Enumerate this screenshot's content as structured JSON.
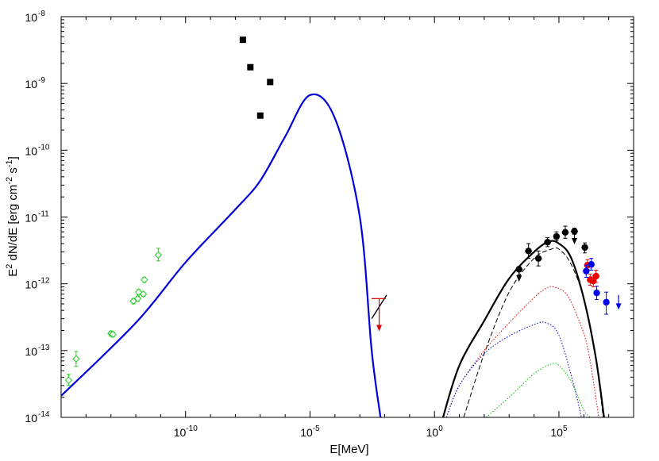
{
  "chart_data": {
    "type": "scatter",
    "xlabel": "E[MeV]",
    "ylabel": {
      "parts": [
        "E",
        "2",
        " dN/dE [erg cm",
        "-2",
        " s",
        "-1",
        "]"
      ]
    },
    "xscale": "log",
    "yscale": "log",
    "xlim": [
      1e-15,
      100000000.0
    ],
    "ylim": [
      1e-14,
      1e-08
    ],
    "x_ticks": [
      {
        "value": 1e-10,
        "base": "10",
        "exp": "-10"
      },
      {
        "value": 1e-05,
        "base": "10",
        "exp": "-5"
      },
      {
        "value": 1,
        "base": "10",
        "exp": "0"
      },
      {
        "value": 100000.0,
        "base": "10",
        "exp": "5"
      }
    ],
    "y_ticks": [
      {
        "value": 1e-14,
        "base": "10",
        "exp": "-14"
      },
      {
        "value": 1e-13,
        "base": "10",
        "exp": "-13"
      },
      {
        "value": 1e-12,
        "base": "10",
        "exp": "-12"
      },
      {
        "value": 1e-11,
        "base": "10",
        "exp": "-11"
      },
      {
        "value": 1e-10,
        "base": "10",
        "exp": "-10"
      },
      {
        "value": 1e-09,
        "base": "10",
        "exp": "-9"
      },
      {
        "value": 1e-08,
        "base": "10",
        "exp": "-8"
      }
    ],
    "grid": false,
    "colors": {
      "synchrotron": "#0000dd",
      "radio_points": "#22cc22",
      "black_squares": "#000000",
      "xray_limit": "#dd0000",
      "gev_points": "#000000",
      "red_points": "#ee0000",
      "blue_points": "#0000ee",
      "dotted_red": "#dd0000",
      "dotted_blue": "#0000cc",
      "dotted_green": "#00bb00"
    },
    "series": [
      {
        "kind": "curve",
        "style": "solid-blue",
        "points": [
          [
            1e-15,
            2.1e-14
          ],
          [
            1e-12,
            2.6e-13
          ],
          [
            1e-10,
            2.1e-12
          ],
          [
            1e-08,
            1.3e-11
          ],
          [
            1e-07,
            3.5e-11
          ],
          [
            1e-06,
            1.6e-10
          ],
          [
            1e-05,
            6.7e-10
          ],
          [
            0.0001,
            3e-10
          ],
          [
            0.001,
            1e-11
          ],
          [
            0.003,
            1e-13
          ],
          [
            0.0068,
            1e-14
          ]
        ]
      },
      {
        "kind": "points",
        "marker": "open-diamond",
        "style": "radio-green",
        "points": [
          {
            "x": 2e-15,
            "y": 3.6e-14,
            "ylo": 3e-14,
            "yhi": 4.4e-14
          },
          {
            "x": 4e-15,
            "y": 7.5e-14,
            "ylo": 5.8e-14,
            "yhi": 9.7e-14
          },
          {
            "x": 1e-13,
            "y": 1.8e-13,
            "ylo": 1.65e-13,
            "yhi": 1.95e-13
          },
          {
            "x": 1.2e-13,
            "y": 1.75e-13,
            "ylo": 1.6e-13,
            "yhi": 1.9e-13
          },
          {
            "x": 8e-13,
            "y": 5.5e-13,
            "ylo": 5e-13,
            "yhi": 6e-13
          },
          {
            "x": 1.2e-12,
            "y": 6e-13,
            "ylo": 5.5e-13,
            "yhi": 6.5e-13
          },
          {
            "x": 1.3e-12,
            "y": 7.5e-13,
            "ylo": 6.8e-13,
            "yhi": 8.2e-13
          },
          {
            "x": 2e-12,
            "y": 7e-13,
            "ylo": 6.5e-13,
            "yhi": 7.5e-13
          },
          {
            "x": 2.2e-12,
            "y": 1.15e-12,
            "ylo": 1.05e-12,
            "yhi": 1.25e-12
          },
          {
            "x": 8e-12,
            "y": 2.7e-12,
            "ylo": 2.2e-12,
            "yhi": 3.4e-12
          }
        ]
      },
      {
        "kind": "points",
        "marker": "filled-square",
        "style": "black-squares",
        "points": [
          {
            "x": 2e-08,
            "y": 4.5e-09
          },
          {
            "x": 4e-08,
            "y": 1.75e-09
          },
          {
            "x": 2.5e-07,
            "y": 1.05e-09
          },
          {
            "x": 1e-07,
            "y": 3.3e-10
          }
        ]
      },
      {
        "kind": "curve",
        "style": "xray-bowtie",
        "points": [
          [
            0.003,
            3e-13
          ],
          [
            0.012,
            6.8e-13
          ]
        ]
      },
      {
        "kind": "limit",
        "style": "xray-limit",
        "x": 0.006,
        "xlo": 0.003,
        "xhi": 0.011,
        "y": 6e-13,
        "yto": 2e-13
      },
      {
        "kind": "curve",
        "style": "solid-black",
        "points": [
          [
            2.2,
            1e-14
          ],
          [
            10,
            6e-14
          ],
          [
            100,
            2.8e-13
          ],
          [
            1000.0,
            1.2e-12
          ],
          [
            10000.0,
            3e-12
          ],
          [
            40000.0,
            4.3e-12
          ],
          [
            100000.0,
            4e-12
          ],
          [
            300000.0,
            2.5e-12
          ],
          [
            1000000.0,
            6e-13
          ],
          [
            3000000.0,
            8e-14
          ],
          [
            6500000.0,
            1e-14
          ]
        ]
      },
      {
        "kind": "curve",
        "style": "dashed-black",
        "points": [
          [
            15,
            1e-14
          ],
          [
            100,
            9e-14
          ],
          [
            1000.0,
            7.5e-13
          ],
          [
            10000.0,
            2.4e-12
          ],
          [
            50000.0,
            3.3e-12
          ],
          [
            100000.0,
            3.3e-12
          ],
          [
            300000.0,
            2e-12
          ],
          [
            1000000.0,
            6e-13
          ],
          [
            3000000.0,
            8e-14
          ],
          [
            6000000.0,
            1e-14
          ]
        ]
      },
      {
        "kind": "curve",
        "style": "dotted-red",
        "points": [
          [
            3,
            1e-14
          ],
          [
            10,
            3e-14
          ],
          [
            100,
            1e-13
          ],
          [
            1000.0,
            2.6e-13
          ],
          [
            10000.0,
            6.2e-13
          ],
          [
            30000.0,
            8.5e-13
          ],
          [
            60000.0,
            9e-13
          ],
          [
            200000.0,
            7e-13
          ],
          [
            600000.0,
            3e-13
          ],
          [
            1500000.0,
            1e-13
          ],
          [
            4000000.0,
            1e-14
          ]
        ]
      },
      {
        "kind": "curve",
        "style": "dotted-blue",
        "points": [
          [
            3,
            1e-14
          ],
          [
            10,
            3e-14
          ],
          [
            100,
            9e-14
          ],
          [
            1000.0,
            1.65e-13
          ],
          [
            10000.0,
            2.45e-13
          ],
          [
            30000.0,
            2.6e-13
          ],
          [
            100000.0,
            1.7e-13
          ],
          [
            400000.0,
            3e-14
          ],
          [
            800000.0,
            1e-14
          ]
        ]
      },
      {
        "kind": "curve",
        "style": "dotted-green",
        "points": [
          [
            120,
            1e-14
          ],
          [
            1000.0,
            2e-14
          ],
          [
            10000.0,
            4.5e-14
          ],
          [
            50000.0,
            6.3e-14
          ],
          [
            100000.0,
            6e-14
          ],
          [
            300000.0,
            3.5e-14
          ],
          [
            1000000.0,
            1.3e-14
          ],
          [
            1800000.0,
            1e-14
          ]
        ]
      },
      {
        "kind": "points",
        "marker": "filled-circle",
        "style": "gev-black",
        "points": [
          {
            "x": 2500,
            "y": 1.65e-12,
            "ylo": 1.35e-12,
            "yhi": 1.8e-12,
            "xlo": 1800,
            "xhi": 3500
          },
          {
            "x": 6000,
            "y": 3.1e-12,
            "ylo": 2.4e-12,
            "yhi": 4e-12,
            "xlo": 4300,
            "xhi": 8300
          },
          {
            "x": 15000,
            "y": 2.4e-12,
            "ylo": 1.85e-12,
            "yhi": 3.1e-12,
            "xlo": 10800,
            "xhi": 20800
          },
          {
            "x": 35000,
            "y": 4.2e-12,
            "ylo": 3.6e-12,
            "yhi": 4.9e-12,
            "xlo": 25000,
            "xhi": 48000
          },
          {
            "x": 80000,
            "y": 5.1e-12,
            "ylo": 4.4e-12,
            "yhi": 6e-12,
            "xlo": 58000,
            "xhi": 110000
          },
          {
            "x": 180000,
            "y": 5.9e-12,
            "ylo": 4.8e-12,
            "yhi": 7.3e-12,
            "xlo": 130000,
            "xhi": 250000
          },
          {
            "x": 420000,
            "y": 6.1e-12,
            "ylo": 5.5e-12,
            "yhi": 6.8e-12,
            "xlo": 300000,
            "xhi": 580000
          },
          {
            "x": 1100000,
            "y": 3.5e-12,
            "ylo": 2.9e-12,
            "yhi": 4.1e-12,
            "xlo": 800000,
            "xhi": 1500000
          }
        ]
      },
      {
        "kind": "limit",
        "style": "gev-black",
        "x": 420000,
        "y": 6.1e-12,
        "yto": 4e-12
      },
      {
        "kind": "limit",
        "style": "gev-black",
        "x": 2500,
        "y": 1.65e-12,
        "yto": 1.1e-12
      },
      {
        "kind": "points",
        "marker": "filled-circle",
        "style": "tev-red",
        "points": [
          {
            "x": 1400000.0,
            "y": 1.9e-12,
            "ylo": 1.6e-12,
            "yhi": 2.3e-12
          },
          {
            "x": 1800000.0,
            "y": 1.15e-12,
            "ylo": 9.5e-13,
            "yhi": 1.4e-12
          },
          {
            "x": 2400000.0,
            "y": 1.1e-12,
            "ylo": 9e-13,
            "yhi": 1.3e-12
          },
          {
            "x": 3100000.0,
            "y": 1.3e-12,
            "ylo": 1.05e-12,
            "yhi": 1.6e-12
          }
        ]
      },
      {
        "kind": "points",
        "marker": "filled-circle",
        "style": "tev-blue",
        "points": [
          {
            "x": 1250000.0,
            "y": 1.55e-12,
            "ylo": 1.25e-12,
            "yhi": 1.9e-12
          },
          {
            "x": 2000000.0,
            "y": 1.95e-12,
            "ylo": 1.6e-12,
            "yhi": 2.4e-12
          },
          {
            "x": 3300000.0,
            "y": 7.3e-13,
            "ylo": 5.8e-13,
            "yhi": 9.2e-13
          },
          {
            "x": 8000000.0,
            "y": 5.3e-13,
            "ylo": 3.5e-13,
            "yhi": 7.5e-13
          }
        ]
      },
      {
        "kind": "limit",
        "style": "tev-blue",
        "x": 25000000.0,
        "y": 6.8e-13,
        "yto": 4.2e-13
      }
    ]
  }
}
